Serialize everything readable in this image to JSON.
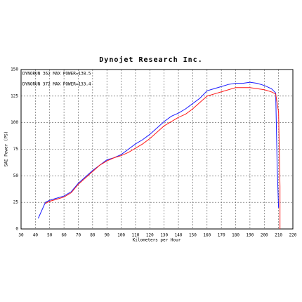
{
  "chart_data": {
    "type": "line",
    "title": "Dynojet Research Inc.",
    "x_label": "Kilometers per Hour",
    "y_label": "SAE Power (PS)",
    "xlim": [
      30,
      220
    ],
    "xticks": [
      30,
      40,
      50,
      60,
      70,
      80,
      90,
      100,
      110,
      120,
      130,
      140,
      150,
      160,
      170,
      180,
      190,
      200,
      210,
      220
    ],
    "ylim": [
      0,
      150
    ],
    "yticks": [
      0,
      25,
      50,
      75,
      100,
      125,
      150
    ],
    "grid": true,
    "legend": "top-left",
    "series": [
      {
        "name": "DYNORUN 362  MAX POWER=138.5",
        "color": "#1a1aff",
        "x": [
          42,
          47,
          50,
          55,
          60,
          65,
          70,
          75,
          80,
          85,
          90,
          95,
          100,
          105,
          110,
          115,
          120,
          125,
          130,
          135,
          140,
          145,
          150,
          155,
          160,
          165,
          170,
          175,
          180,
          185,
          190,
          195,
          200,
          205,
          208,
          209,
          210
        ],
        "values": [
          10,
          25,
          27,
          29,
          31,
          35,
          43,
          49,
          55,
          60,
          65,
          67,
          70,
          75,
          80,
          84,
          89,
          95,
          101,
          106,
          109,
          113,
          118,
          123,
          130,
          132,
          134,
          136,
          137,
          137,
          138,
          137,
          135,
          132,
          128,
          60,
          20
        ]
      },
      {
        "name": "DYNORUN 372  MAX POWER=133.4",
        "color": "#ff1a1a",
        "x": [
          47,
          50,
          55,
          60,
          65,
          70,
          75,
          80,
          85,
          90,
          95,
          100,
          105,
          110,
          115,
          120,
          125,
          130,
          135,
          140,
          145,
          150,
          155,
          160,
          165,
          170,
          175,
          180,
          185,
          190,
          195,
          200,
          205,
          208,
          210,
          211,
          211
        ],
        "values": [
          24,
          26,
          28,
          30,
          34,
          42,
          48,
          54,
          60,
          64,
          67,
          69,
          72,
          76,
          80,
          85,
          91,
          97,
          101,
          105,
          108,
          113,
          119,
          125,
          127,
          129,
          131,
          133,
          133,
          133,
          132,
          131,
          129,
          127,
          110,
          40,
          0
        ]
      }
    ]
  }
}
